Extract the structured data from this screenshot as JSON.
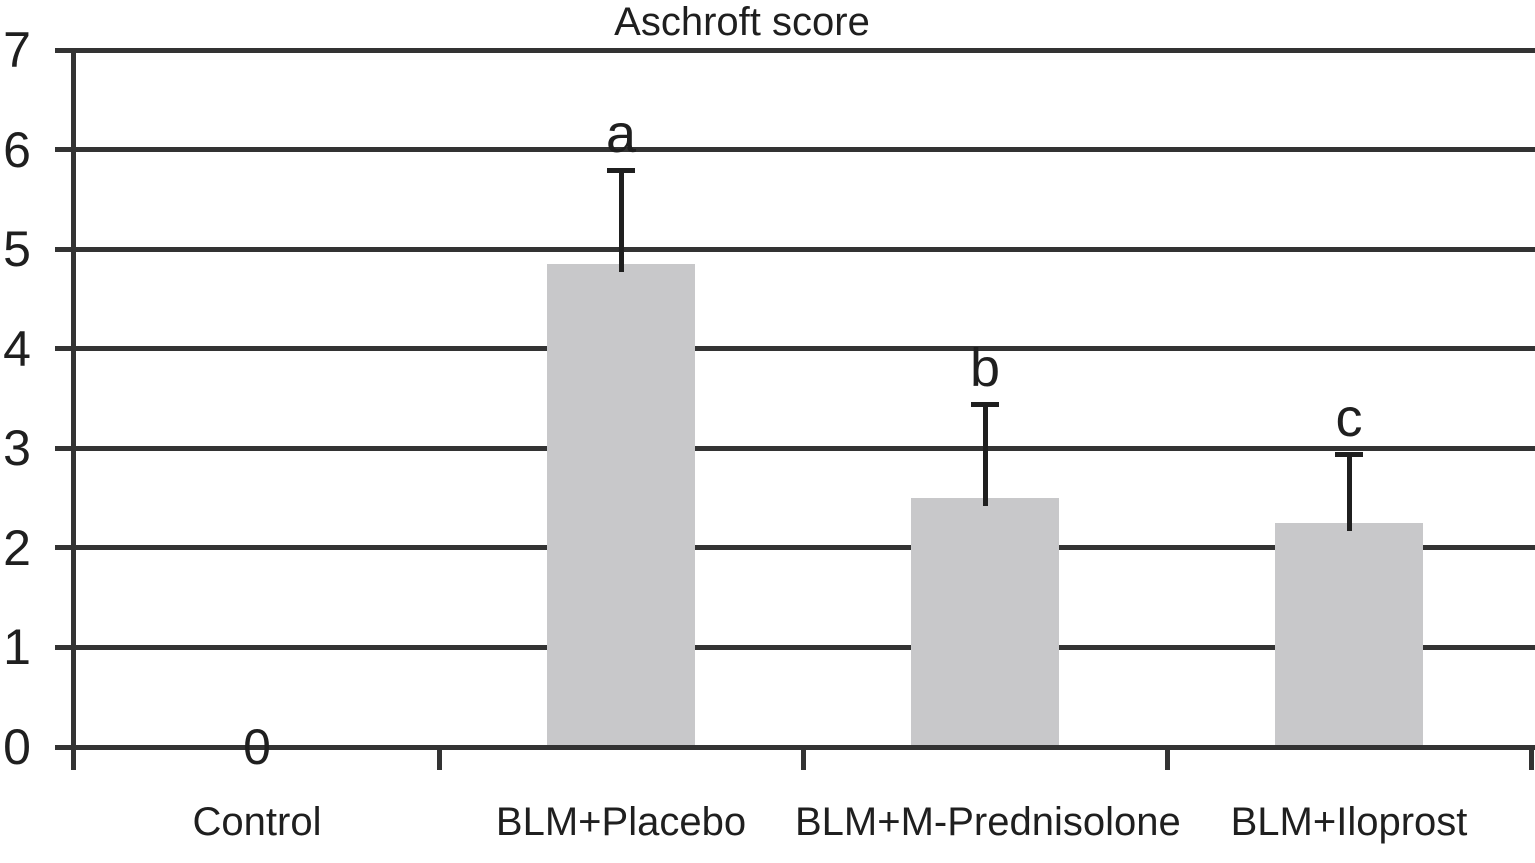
{
  "chart_data": {
    "type": "bar",
    "title": "Aschroft score",
    "xlabel": "",
    "ylabel": "",
    "categories": [
      "Control",
      "BLM+Placebo",
      "BLM+M-Prednisolone",
      "BLM+Iloprost"
    ],
    "values": [
      0,
      4.85,
      2.5,
      2.25
    ],
    "errors": [
      0,
      0.95,
      0.95,
      0.7
    ],
    "sig_labels": [
      "",
      "a",
      "b",
      "c"
    ],
    "value_labels": [
      "0",
      "",
      "",
      ""
    ],
    "ylim": [
      0,
      7
    ],
    "yticks": [
      0,
      1,
      2,
      3,
      4,
      5,
      6,
      7
    ],
    "grid": true,
    "legend": "none",
    "colors": {
      "bar_fill": "#c8c8ca",
      "grid_line": "#333333",
      "error_bar": "#1f1f1f",
      "text": "#1f1f1f",
      "background": "#ffffff"
    }
  }
}
